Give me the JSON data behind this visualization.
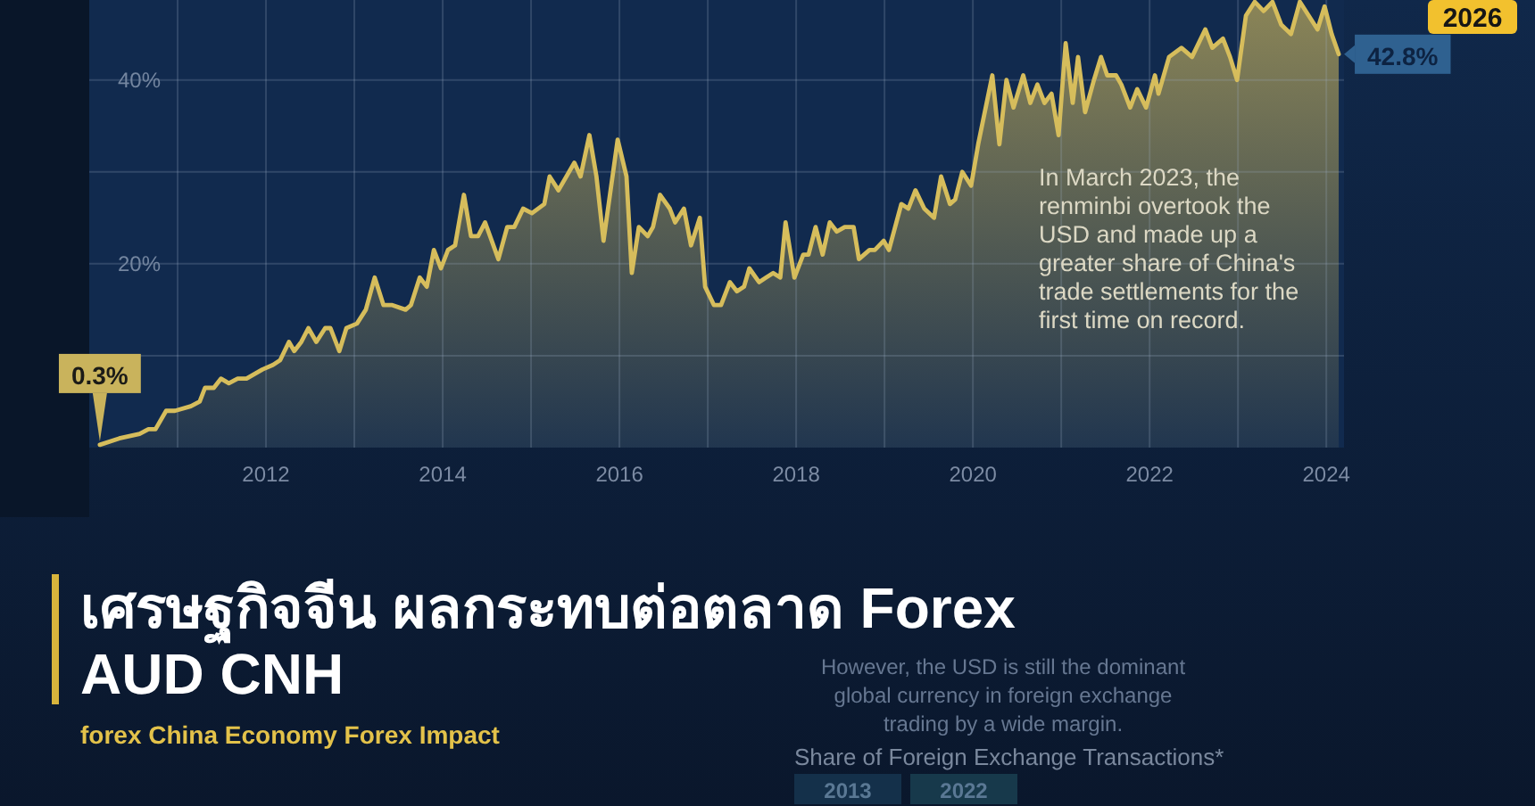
{
  "chart_data": {
    "type": "area",
    "title": "เศรษฐกิจจีน ผลกระทบต่อตลาด Forex AUD CNH",
    "subtitle": "forex China Economy Forex Impact",
    "x": [
      2010.12,
      2010.34,
      2010.57,
      2010.67,
      2010.75,
      2010.87,
      2010.97,
      2011.15,
      2011.25,
      2011.31,
      2011.41,
      2011.49,
      2011.58,
      2011.68,
      2011.78,
      2011.96,
      2012.08,
      2012.16,
      2012.26,
      2012.32,
      2012.4,
      2012.48,
      2012.57,
      2012.67,
      2012.73,
      2012.83,
      2012.91,
      2013.03,
      2013.13,
      2013.23,
      2013.33,
      2013.43,
      2013.58,
      2013.64,
      2013.74,
      2013.82,
      2013.9,
      2013.98,
      2014.06,
      2014.14,
      2014.24,
      2014.32,
      2014.4,
      2014.48,
      2014.63,
      2014.73,
      2014.81,
      2014.91,
      2015.01,
      2015.15,
      2015.21,
      2015.31,
      2015.49,
      2015.56,
      2015.66,
      2015.74,
      2015.82,
      2015.98,
      2016.08,
      2016.14,
      2016.22,
      2016.32,
      2016.38,
      2016.46,
      2016.57,
      2016.63,
      2016.73,
      2016.81,
      2016.91,
      2016.97,
      2017.07,
      2017.15,
      2017.25,
      2017.33,
      2017.41,
      2017.47,
      2017.58,
      2017.66,
      2017.74,
      2017.82,
      2017.88,
      2017.98,
      2018.08,
      2018.14,
      2018.22,
      2018.3,
      2018.38,
      2018.46,
      2018.55,
      2018.65,
      2018.71,
      2018.83,
      2018.89,
      2018.99,
      2019.05,
      2019.19,
      2019.27,
      2019.35,
      2019.45,
      2019.56,
      2019.64,
      2019.74,
      2019.8,
      2019.88,
      2019.98,
      2020.06,
      2020.22,
      2020.3,
      2020.38,
      2020.46,
      2020.57,
      2020.65,
      2020.73,
      2020.81,
      2020.89,
      2020.97,
      2021.05,
      2021.13,
      2021.19,
      2021.27,
      2021.37,
      2021.45,
      2021.52,
      2021.62,
      2021.68,
      2021.78,
      2021.86,
      2021.96,
      2022.06,
      2022.1,
      2022.22,
      2022.36,
      2022.48,
      2022.63,
      2022.71,
      2022.83,
      2022.91,
      2022.99,
      2023.09,
      2023.19,
      2023.29,
      2023.39,
      2023.49,
      2023.6,
      2023.7,
      2023.8,
      2023.9,
      2023.98,
      2024.06,
      2024.14
    ],
    "values": [
      0.3,
      1.0,
      1.5,
      2.0,
      2.0,
      4.0,
      4.0,
      4.5,
      5.0,
      6.5,
      6.5,
      7.5,
      7.0,
      7.5,
      7.5,
      8.5,
      9.0,
      9.5,
      11.5,
      10.5,
      11.5,
      13.0,
      11.5,
      13.0,
      13.0,
      10.5,
      13.0,
      13.5,
      15.0,
      18.5,
      15.5,
      15.5,
      15.0,
      15.5,
      18.5,
      17.5,
      21.5,
      19.5,
      21.5,
      22.0,
      27.5,
      23.0,
      23.0,
      24.5,
      20.5,
      24.0,
      24.0,
      26.0,
      25.5,
      26.5,
      29.5,
      28.0,
      31.0,
      29.5,
      34.0,
      29.5,
      22.5,
      33.5,
      29.5,
      19.0,
      24.0,
      23.0,
      24.0,
      27.5,
      26.0,
      24.5,
      26.0,
      22.0,
      25.0,
      17.5,
      15.5,
      15.5,
      18.0,
      17.0,
      17.5,
      19.5,
      18.0,
      18.5,
      19.0,
      18.5,
      24.5,
      18.5,
      21.0,
      21.0,
      24.0,
      21.0,
      24.5,
      23.5,
      24.0,
      24.0,
      20.5,
      21.5,
      21.5,
      22.5,
      21.5,
      26.5,
      26.0,
      28.0,
      26.0,
      25.0,
      29.5,
      26.5,
      27.0,
      30.0,
      28.5,
      33.0,
      40.5,
      33.0,
      40.0,
      37.0,
      40.5,
      37.5,
      39.5,
      37.5,
      38.5,
      34.0,
      44.0,
      37.5,
      42.5,
      36.5,
      40.0,
      42.5,
      40.5,
      40.5,
      39.5,
      37.0,
      39.0,
      37.0,
      40.5,
      38.5,
      42.5,
      43.5,
      42.5,
      45.5,
      43.5,
      44.5,
      42.5,
      40.0,
      47.0,
      48.5,
      47.5,
      48.5,
      46.0,
      45.0,
      48.5,
      47.0,
      45.5,
      48.0,
      45.0,
      42.8
    ],
    "value_labels": [
      "0.3%",
      null,
      null,
      null,
      null,
      null,
      null,
      null,
      null,
      null,
      null,
      null,
      null,
      null,
      null,
      null,
      null,
      null,
      null,
      null,
      null,
      null,
      null,
      null,
      null,
      null,
      null,
      null,
      null,
      null,
      null,
      null,
      null,
      null,
      null,
      null,
      null,
      null,
      null,
      null,
      null,
      null,
      null,
      null,
      null,
      null,
      null,
      null,
      null,
      null,
      null,
      null,
      null,
      null,
      null,
      null,
      null,
      null,
      null,
      null,
      null,
      null,
      null,
      null,
      null,
      null,
      null,
      null,
      null,
      null,
      null,
      null,
      null,
      null,
      null,
      null,
      null,
      null,
      null,
      null,
      null,
      null,
      null,
      null,
      null,
      null,
      null,
      null,
      null,
      null,
      null,
      null,
      null,
      null,
      null,
      null,
      null,
      null,
      null,
      null,
      null,
      null,
      null,
      null,
      null,
      null,
      null,
      null,
      null,
      null,
      null,
      null,
      null,
      null,
      null,
      null,
      null,
      null,
      null,
      null,
      null,
      null,
      null,
      null,
      null,
      null,
      null,
      null,
      null,
      null,
      null,
      null,
      null,
      null,
      null,
      null,
      null,
      null,
      null,
      null,
      null,
      null,
      null,
      null,
      null,
      null,
      null,
      null,
      null,
      "42.8%"
    ],
    "color": "#d6bd5c",
    "xlim": [
      2010,
      2024.2
    ],
    "ylim": [
      0,
      48.7
    ],
    "xticks": [
      {
        "value": 2011,
        "label": null
      },
      2012,
      {
        "value": 2013,
        "label": null
      },
      2014,
      {
        "value": 2015,
        "label": null
      },
      2016,
      {
        "value": 2017,
        "label": null
      },
      2018,
      {
        "value": 2019,
        "label": null
      },
      2020,
      {
        "value": 2021,
        "label": null
      },
      2022,
      {
        "value": 2023,
        "label": null
      },
      2024
    ],
    "yticks": [
      {
        "value": 10,
        "label": null
      },
      {
        "value": 20,
        "label": "20%"
      },
      {
        "value": 30,
        "label": null
      },
      {
        "value": 40,
        "label": "40%"
      }
    ],
    "grid": true,
    "line_style": "solid",
    "annotations": [
      "In March 2023, the renminbi overtook the USD and made up a greater share of China's trade settlements for the first time on record.",
      "2026",
      "However, the USD is still the dominant global currency in foreign exchange trading by a wide margin.",
      "Share of Foreign Exchange Transactions*",
      "2013",
      "2022"
    ]
  }
}
